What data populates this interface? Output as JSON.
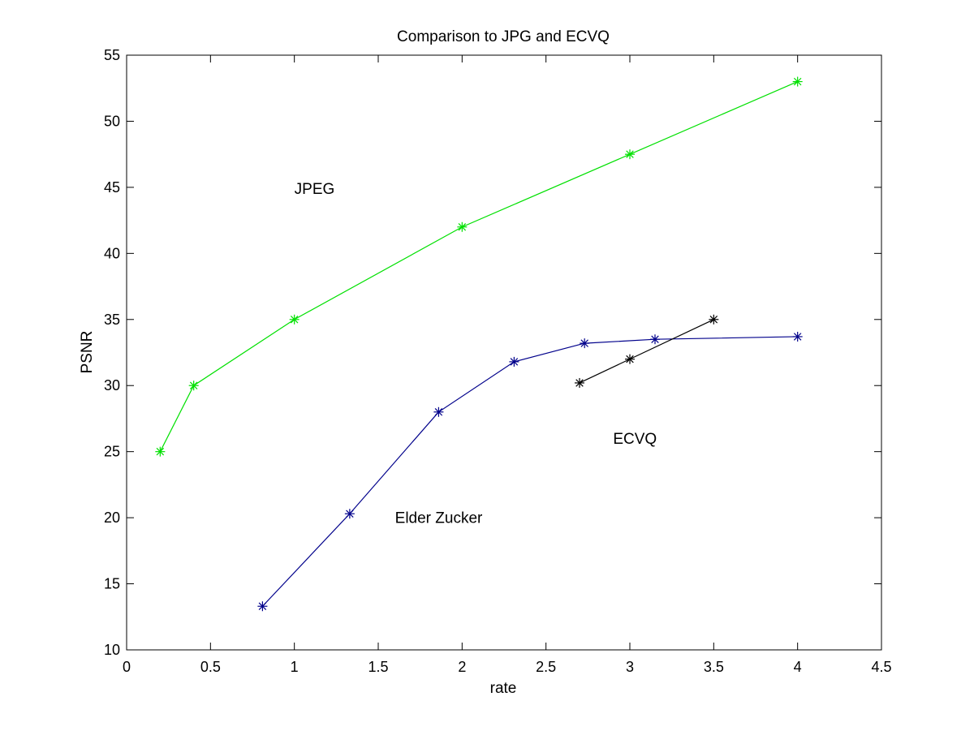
{
  "chart_data": {
    "type": "line",
    "title": "Comparison to JPG and ECVQ",
    "xlabel": "rate",
    "ylabel": "PSNR",
    "xlim": [
      0,
      4.5
    ],
    "ylim": [
      10,
      55
    ],
    "xticks": [
      0,
      0.5,
      1,
      1.5,
      2,
      2.5,
      3,
      3.5,
      4,
      4.5
    ],
    "yticks": [
      10,
      15,
      20,
      25,
      30,
      35,
      40,
      45,
      50,
      55
    ],
    "xtick_labels": [
      "0",
      "0.5",
      "1",
      "1.5",
      "2",
      "2.5",
      "3",
      "3.5",
      "4",
      "4.5"
    ],
    "ytick_labels": [
      "10",
      "15",
      "20",
      "25",
      "30",
      "35",
      "40",
      "45",
      "50",
      "55"
    ],
    "grid": false,
    "marker": "asterisk",
    "series": [
      {
        "color": "#00e000",
        "x": [
          0.2,
          0.4,
          1.0,
          2.0,
          3.0,
          4.0
        ],
        "y": [
          25.0,
          30.0,
          35.0,
          42.0,
          47.5,
          53.0
        ]
      },
      {
        "color": "#00008b",
        "x": [
          0.81,
          1.33,
          1.86,
          2.31,
          2.73,
          3.15,
          4.0
        ],
        "y": [
          13.3,
          20.3,
          28.0,
          31.8,
          33.2,
          33.5,
          33.7
        ]
      },
      {
        "color": "#000000",
        "x": [
          2.7,
          3.0,
          3.5
        ],
        "y": [
          30.2,
          32.0,
          35.0
        ]
      }
    ],
    "annotations": [
      {
        "text": "JPEG",
        "x": 1.0,
        "y": 44.5
      },
      {
        "text": "ECVQ",
        "x": 2.9,
        "y": 25.6
      },
      {
        "text": "Elder Zucker",
        "x": 1.6,
        "y": 19.6
      }
    ]
  }
}
